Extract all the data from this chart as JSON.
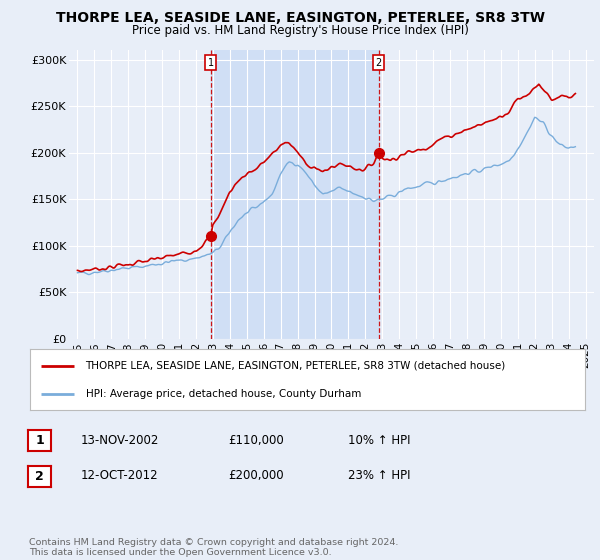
{
  "title": "THORPE LEA, SEASIDE LANE, EASINGTON, PETERLEE, SR8 3TW",
  "subtitle": "Price paid vs. HM Land Registry's House Price Index (HPI)",
  "legend_line1": "THORPE LEA, SEASIDE LANE, EASINGTON, PETERLEE, SR8 3TW (detached house)",
  "legend_line2": "HPI: Average price, detached house, County Durham",
  "footer": "Contains HM Land Registry data © Crown copyright and database right 2024.\nThis data is licensed under the Open Government Licence v3.0.",
  "transaction1_date": "13-NOV-2002",
  "transaction1_price": "£110,000",
  "transaction1_hpi": "10% ↑ HPI",
  "transaction2_date": "12-OCT-2012",
  "transaction2_price": "£200,000",
  "transaction2_hpi": "23% ↑ HPI",
  "background_color": "#e8eef8",
  "plot_bg_color": "#e8eef8",
  "shade_color": "#d0dff5",
  "red_line_color": "#cc0000",
  "blue_line_color": "#7aaddb",
  "vline_color": "#cc0000",
  "ylim": [
    0,
    310000
  ],
  "yticks": [
    0,
    50000,
    100000,
    150000,
    200000,
    250000,
    300000
  ],
  "ytick_labels": [
    "£0",
    "£50K",
    "£100K",
    "£150K",
    "£200K",
    "£250K",
    "£300K"
  ],
  "transaction1_x": 2002.87,
  "transaction1_y": 110000,
  "transaction2_x": 2012.79,
  "transaction2_y": 200000,
  "xlim_left": 1994.5,
  "xlim_right": 2025.5
}
